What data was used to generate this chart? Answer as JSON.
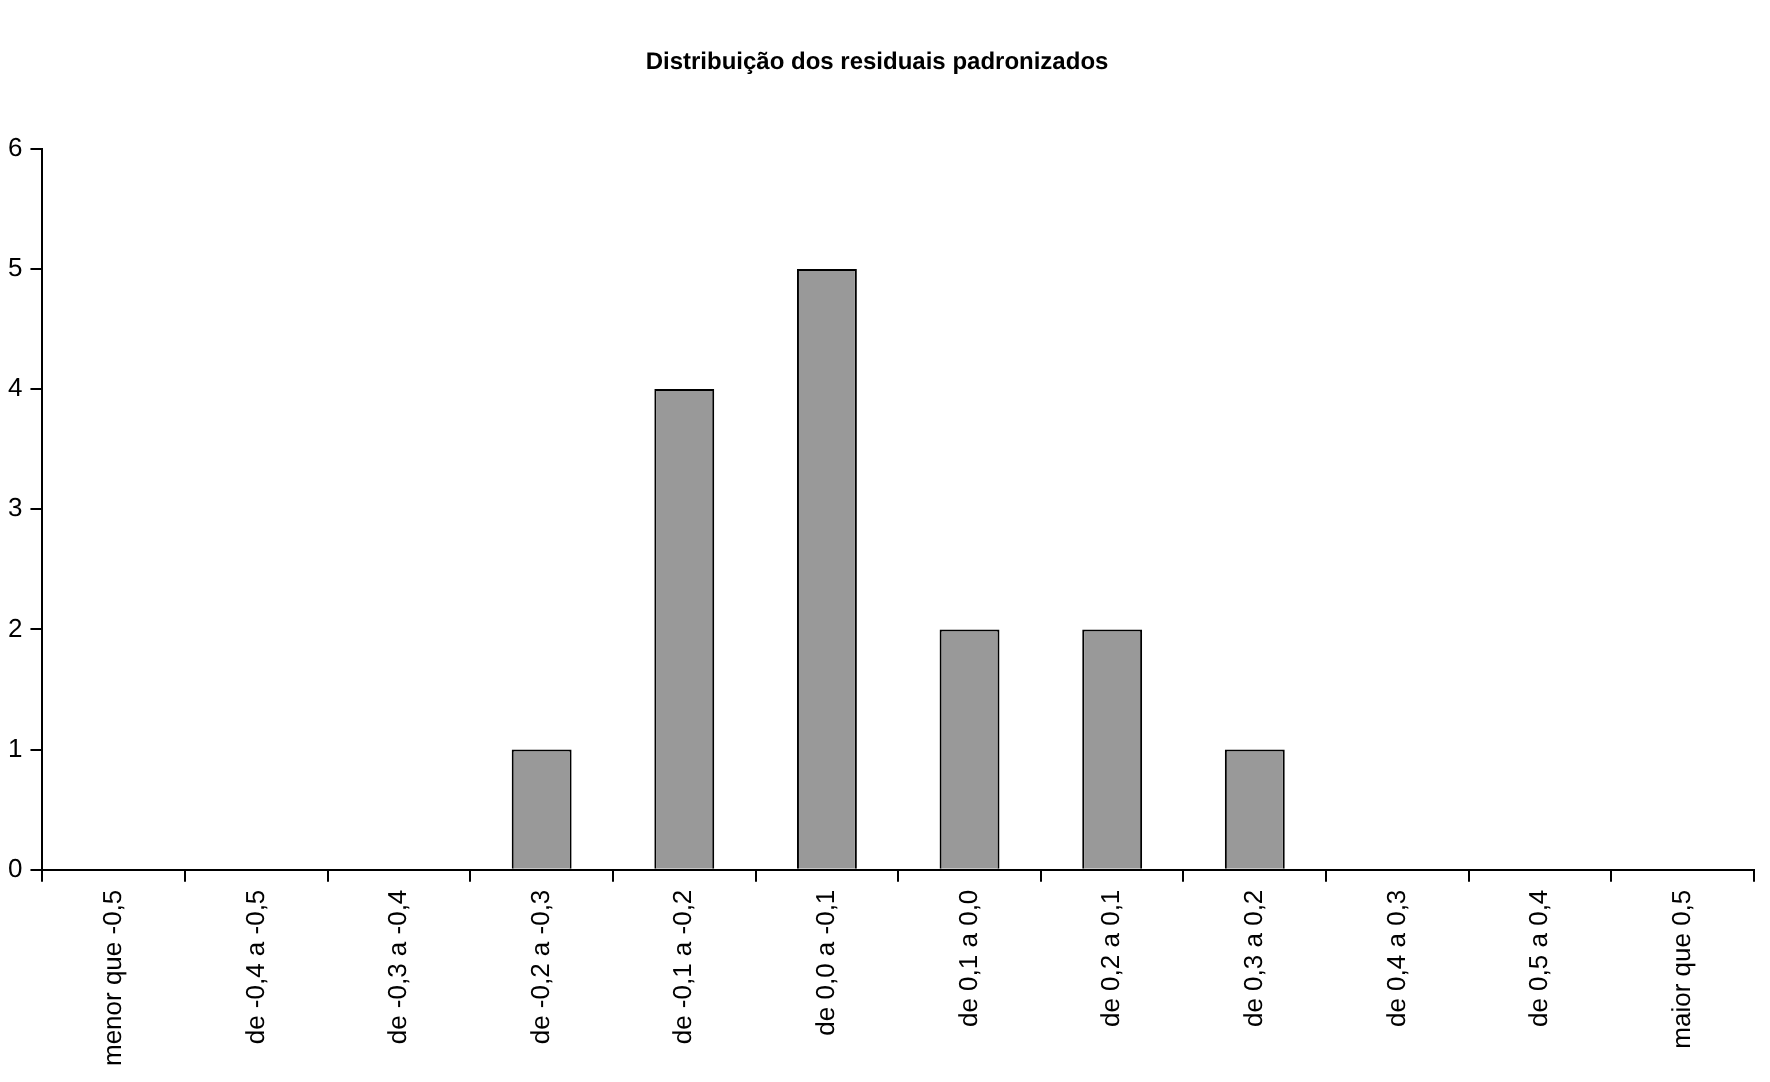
{
  "chart_data": {
    "type": "bar",
    "title": "Distribuição dos residuais padronizados",
    "categories": [
      "menor que -0,5",
      "de -0,4 a -0,5",
      "de -0,3 a -0,4",
      "de -0,2 a -0,3",
      "de -0,1 a -0,2",
      "de 0,0 a -0,1",
      "de 0,1 a 0,0",
      "de 0,2 a 0,1",
      "de 0,3 a 0,2",
      "de 0,4 a 0,3",
      "de 0,5 a 0,4",
      "maior que 0,5"
    ],
    "values": [
      0,
      0,
      0,
      1,
      4,
      5,
      2,
      2,
      1,
      0,
      0,
      0
    ],
    "color": "#999999",
    "ylim": [
      0,
      6
    ],
    "yticks": [
      0,
      1,
      2,
      3,
      4,
      5,
      6
    ],
    "grid": false,
    "legend": false
  }
}
